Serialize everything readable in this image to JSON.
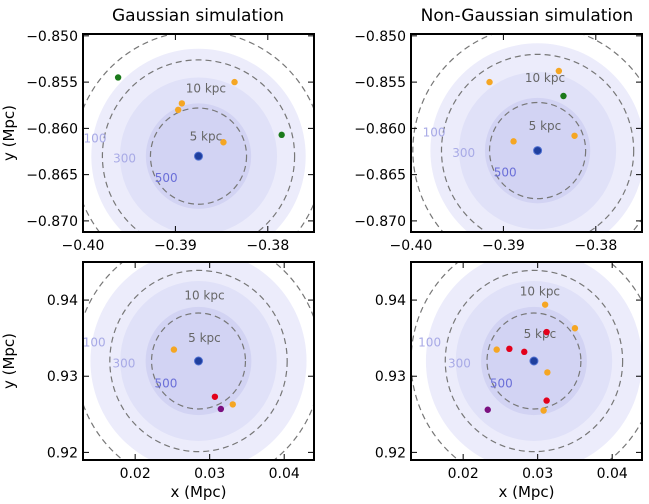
{
  "figure": {
    "titles": [
      "Gaussian simulation",
      "Non-Gaussian simulation"
    ],
    "colors": {
      "disk_outer": "#ececfb",
      "disk_mid": "#e0e1f8",
      "disk_inner": "#d2d3f3",
      "center": "#1f3f9e",
      "ring": "#777777",
      "contour_label": "#a8aae6",
      "ring_label": "#666666",
      "orange": "#f5a623",
      "green": "#1b7a1b",
      "red": "#e3001b",
      "purple": "#7b1080"
    }
  },
  "chart_data": [
    {
      "type": "scatter",
      "title": "Gaussian simulation",
      "xlabel": "",
      "ylabel": "y (Mpc)",
      "xlim": [
        -0.4,
        -0.375
      ],
      "ylim": [
        -0.8712,
        -0.8498
      ],
      "xticks": [
        -0.4,
        -0.39,
        -0.38
      ],
      "xtick_labels": [
        "−0.40",
        "−0.39",
        "−0.38"
      ],
      "yticks": [
        -0.85,
        -0.855,
        -0.86,
        -0.865,
        -0.87
      ],
      "ytick_labels": [
        "−0.850",
        "−0.855",
        "−0.860",
        "−0.865",
        "−0.870"
      ],
      "center": [
        -0.3875,
        -0.863
      ],
      "disk_radii": [
        0.0116,
        0.0085,
        0.0057
      ],
      "ring_radii": [
        0.0135,
        0.0104,
        0.0052
      ],
      "ring_labels": [
        "10 kpc",
        "5 kpc"
      ],
      "contour_labels": [
        "100",
        "300",
        "500"
      ],
      "points": [
        {
          "x": -0.3962,
          "y": -0.8545,
          "c": "green"
        },
        {
          "x": -0.3785,
          "y": -0.8607,
          "c": "green"
        },
        {
          "x": -0.3836,
          "y": -0.855,
          "c": "orange"
        },
        {
          "x": -0.3893,
          "y": -0.8573,
          "c": "orange"
        },
        {
          "x": -0.3897,
          "y": -0.858,
          "c": "orange"
        },
        {
          "x": -0.3848,
          "y": -0.8615,
          "c": "orange"
        }
      ]
    },
    {
      "type": "scatter",
      "title": "Non-Gaussian simulation",
      "xlabel": "",
      "ylabel": "",
      "xlim": [
        -0.4,
        -0.375
      ],
      "ylim": [
        -0.8712,
        -0.8498
      ],
      "xticks": [
        -0.4,
        -0.39,
        -0.38
      ],
      "xtick_labels": [
        "−0.40",
        "−0.39",
        "−0.38"
      ],
      "yticks": [
        -0.85,
        -0.855,
        -0.86,
        -0.865,
        -0.87
      ],
      "ytick_labels": [
        "−0.850",
        "−0.855",
        "−0.860",
        "−0.865",
        "−0.870"
      ],
      "center": [
        -0.3863,
        -0.8624
      ],
      "disk_radii": [
        0.0116,
        0.0085,
        0.0057
      ],
      "ring_radii": [
        0.0135,
        0.0104,
        0.0052
      ],
      "ring_labels": [
        "10 kpc",
        "5 kpc"
      ],
      "contour_labels": [
        "100",
        "300",
        "500"
      ],
      "points": [
        {
          "x": -0.3835,
          "y": -0.8565,
          "c": "green"
        },
        {
          "x": -0.384,
          "y": -0.8538,
          "c": "orange"
        },
        {
          "x": -0.3915,
          "y": -0.855,
          "c": "orange"
        },
        {
          "x": -0.3823,
          "y": -0.8608,
          "c": "orange"
        },
        {
          "x": -0.3889,
          "y": -0.8614,
          "c": "orange"
        }
      ]
    },
    {
      "type": "scatter",
      "title": "",
      "xlabel": "x (Mpc)",
      "ylabel": "y (Mpc)",
      "xlim": [
        0.013,
        0.044
      ],
      "ylim": [
        0.919,
        0.945
      ],
      "xticks": [
        0.02,
        0.03,
        0.04
      ],
      "xtick_labels": [
        "0.02",
        "0.03",
        "0.04"
      ],
      "yticks": [
        0.92,
        0.93,
        0.94
      ],
      "ytick_labels": [
        "0.92",
        "0.93",
        "0.94"
      ],
      "center": [
        0.0285,
        0.932
      ],
      "disk_radii": [
        0.0145,
        0.0105,
        0.0071
      ],
      "ring_radii": [
        0.0165,
        0.0119,
        0.0063
      ],
      "ring_labels": [
        "10 kpc",
        "5 kpc"
      ],
      "contour_labels": [
        "100",
        "300",
        "500"
      ],
      "points": [
        {
          "x": 0.0252,
          "y": 0.9335,
          "c": "orange"
        },
        {
          "x": 0.0331,
          "y": 0.9263,
          "c": "orange"
        },
        {
          "x": 0.0307,
          "y": 0.9273,
          "c": "red"
        },
        {
          "x": 0.0315,
          "y": 0.9257,
          "c": "purple"
        }
      ]
    },
    {
      "type": "scatter",
      "title": "",
      "xlabel": "x (Mpc)",
      "ylabel": "",
      "xlim": [
        0.013,
        0.044
      ],
      "ylim": [
        0.919,
        0.945
      ],
      "xticks": [
        0.02,
        0.03,
        0.04
      ],
      "xtick_labels": [
        "0.02",
        "0.03",
        "0.04"
      ],
      "yticks": [
        0.92,
        0.93,
        0.94
      ],
      "ytick_labels": [
        "0.92",
        "0.93",
        "0.94"
      ],
      "center": [
        0.0295,
        0.932
      ],
      "disk_radii": [
        0.0145,
        0.0105,
        0.0071
      ],
      "ring_radii": [
        0.0165,
        0.0119,
        0.0063
      ],
      "ring_labels": [
        "10 kpc",
        "5 kpc"
      ],
      "contour_labels": [
        "100",
        "300",
        "500"
      ],
      "points": [
        {
          "x": 0.031,
          "y": 0.9394,
          "c": "orange"
        },
        {
          "x": 0.035,
          "y": 0.9363,
          "c": "orange"
        },
        {
          "x": 0.0245,
          "y": 0.9335,
          "c": "orange"
        },
        {
          "x": 0.0313,
          "y": 0.9305,
          "c": "orange"
        },
        {
          "x": 0.0308,
          "y": 0.9255,
          "c": "orange"
        },
        {
          "x": 0.0312,
          "y": 0.9358,
          "c": "red"
        },
        {
          "x": 0.0262,
          "y": 0.9336,
          "c": "red"
        },
        {
          "x": 0.0282,
          "y": 0.9332,
          "c": "red"
        },
        {
          "x": 0.0312,
          "y": 0.9268,
          "c": "red"
        },
        {
          "x": 0.0233,
          "y": 0.9256,
          "c": "purple"
        }
      ]
    }
  ]
}
